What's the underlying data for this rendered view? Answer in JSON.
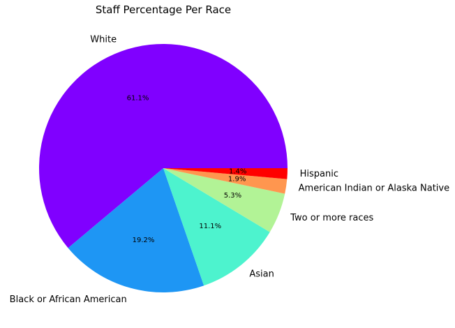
{
  "chart_data": {
    "type": "pie",
    "title": "Staff Percentage Per Race",
    "slices": [
      {
        "label": "White",
        "value": 61.1,
        "pct_label": "61.1%",
        "color": "#8000ff"
      },
      {
        "label": "Black or African American",
        "value": 19.2,
        "pct_label": "19.2%",
        "color": "#1e96f4"
      },
      {
        "label": "Asian",
        "value": 11.1,
        "pct_label": "11.1%",
        "color": "#4df3ce"
      },
      {
        "label": "Two or more races",
        "value": 5.3,
        "pct_label": "5.3%",
        "color": "#b2f396"
      },
      {
        "label": "American Indian or Alaska Native",
        "value": 1.9,
        "pct_label": "1.9%",
        "color": "#ff964f"
      },
      {
        "label": "Hispanic",
        "value": 1.4,
        "pct_label": "1.4%",
        "color": "#ff0000"
      }
    ]
  }
}
